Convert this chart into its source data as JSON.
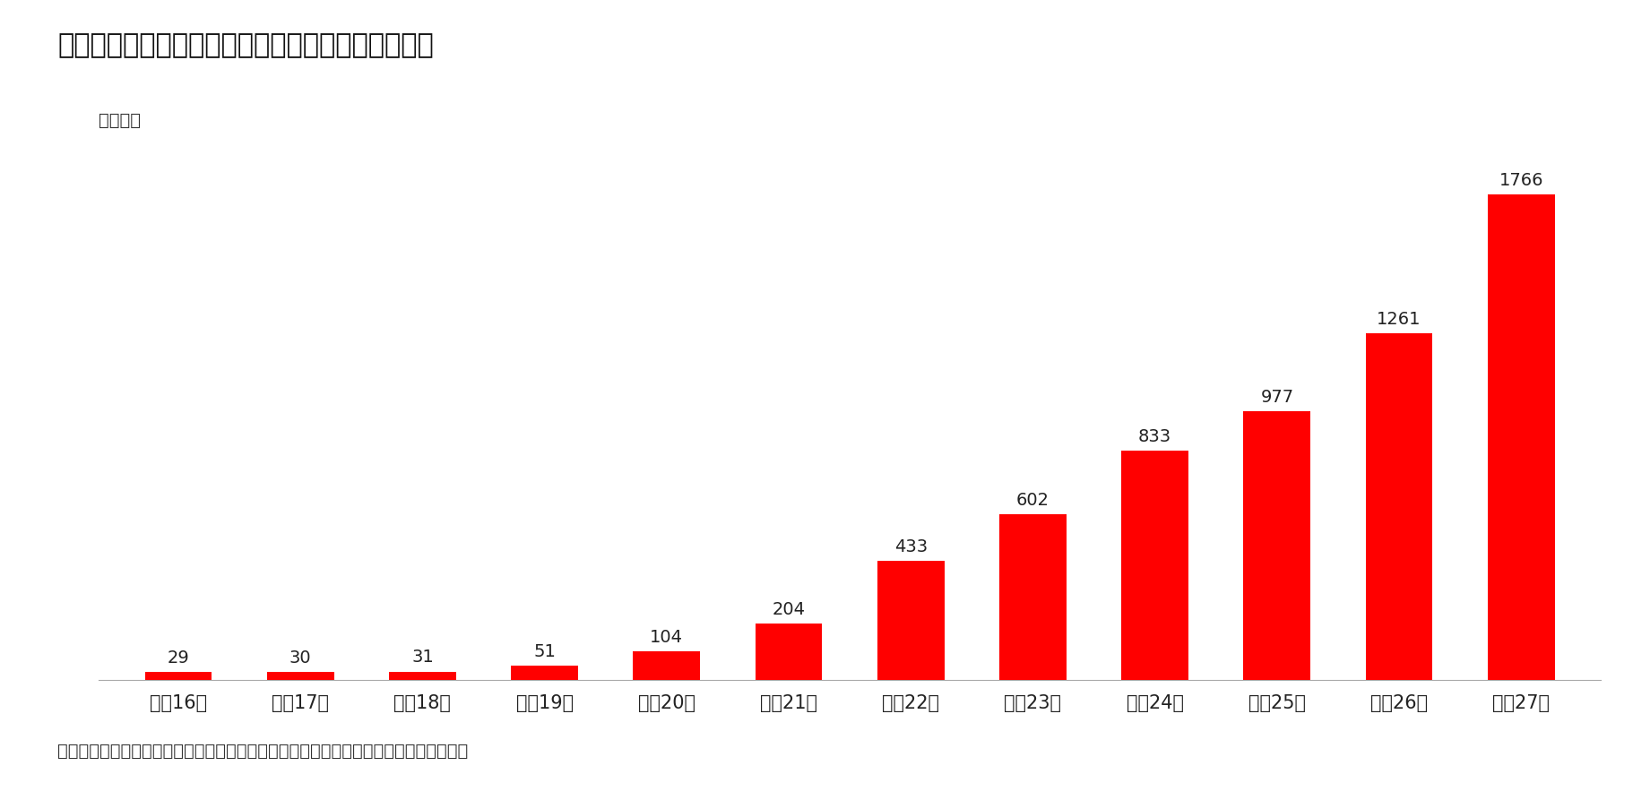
{
  "title": "韓国における新型コロナウイルスの感染者数の推移",
  "unit_label": "単位：人",
  "source_label": "出所）韓国疾病管理本部「新型コロナウイルス感染症発生現況」（各日）から筆者作成",
  "categories": [
    "２月16日",
    "２月17日",
    "２月18日",
    "２月19日",
    "２月20日",
    "２月21日",
    "２月22日",
    "２月23日",
    "２月24日",
    "２月25日",
    "２月26日",
    "２月27日"
  ],
  "values": [
    29,
    30,
    31,
    51,
    104,
    204,
    433,
    602,
    833,
    977,
    1261,
    1766
  ],
  "bar_color": "#FF0000",
  "background_color": "#FFFFFF",
  "ylim": [
    0,
    1950
  ],
  "title_fontsize": 22,
  "tick_fontsize": 15,
  "source_fontsize": 14,
  "unit_fontsize": 14,
  "value_fontsize": 14
}
